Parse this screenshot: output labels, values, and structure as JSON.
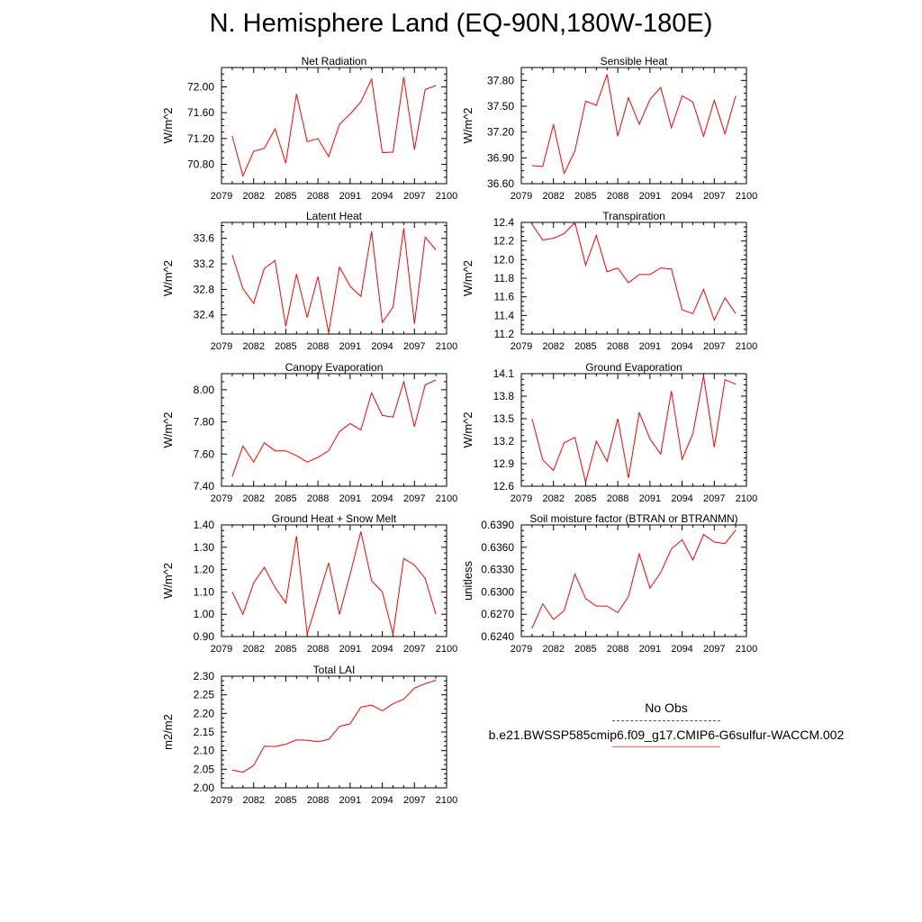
{
  "page_title": "N. Hemisphere Land (EQ-90N,180W-180E)",
  "legend": {
    "obs_label": "No Obs",
    "run_label": "b.e21.BWSSP585cmip6.f09_g17.CMIP6-G6sulfur-WACCM.002"
  },
  "colors": {
    "series": "#ff0000",
    "axis": "#000000"
  },
  "chart_data": [
    {
      "type": "line",
      "title": "Net Radiation",
      "ylabel": "W/m^2",
      "xlabel": "",
      "xlim": [
        2079,
        2100
      ],
      "ylim": [
        70.5,
        72.3
      ],
      "yticks": [
        "70.80",
        "71.20",
        "71.60",
        "72.00"
      ],
      "xticks": [
        "2079",
        "2082",
        "2085",
        "2088",
        "2091",
        "2094",
        "2097",
        "2100"
      ],
      "x": [
        2080,
        2081,
        2082,
        2083,
        2084,
        2085,
        2086,
        2087,
        2088,
        2089,
        2090,
        2091,
        2092,
        2093,
        2094,
        2095,
        2096,
        2097,
        2098,
        2099
      ],
      "series": [
        {
          "values": [
            71.24,
            70.62,
            71.0,
            71.05,
            71.35,
            70.82,
            71.89,
            71.15,
            71.2,
            70.92,
            71.42,
            71.58,
            71.77,
            72.12,
            70.98,
            70.99,
            72.15,
            71.03,
            71.96,
            72.02
          ]
        }
      ]
    },
    {
      "type": "line",
      "title": "Sensible Heat",
      "ylabel": "W/m^2",
      "xlabel": "",
      "xlim": [
        2079,
        2100
      ],
      "ylim": [
        36.6,
        37.95
      ],
      "yticks": [
        "36.60",
        "36.90",
        "37.20",
        "37.50",
        "37.80"
      ],
      "xticks": [
        "2079",
        "2082",
        "2085",
        "2088",
        "2091",
        "2094",
        "2097",
        "2100"
      ],
      "x": [
        2080,
        2081,
        2082,
        2083,
        2084,
        2085,
        2086,
        2087,
        2088,
        2089,
        2090,
        2091,
        2092,
        2093,
        2094,
        2095,
        2096,
        2097,
        2098,
        2099
      ],
      "series": [
        {
          "values": [
            36.81,
            36.8,
            37.29,
            36.72,
            36.98,
            37.56,
            37.51,
            37.87,
            37.15,
            37.6,
            37.29,
            37.58,
            37.72,
            37.25,
            37.62,
            37.55,
            37.15,
            37.57,
            37.18,
            37.62
          ]
        }
      ]
    },
    {
      "type": "line",
      "title": "Latent Heat",
      "ylabel": "W/m^2",
      "xlabel": "",
      "xlim": [
        2079,
        2100
      ],
      "ylim": [
        32.1,
        33.85
      ],
      "yticks": [
        "32.4",
        "32.8",
        "33.2",
        "33.6"
      ],
      "xticks": [
        "2079",
        "2082",
        "2085",
        "2088",
        "2091",
        "2094",
        "2097",
        "2100"
      ],
      "x": [
        2080,
        2081,
        2082,
        2083,
        2084,
        2085,
        2086,
        2087,
        2088,
        2089,
        2090,
        2091,
        2092,
        2093,
        2094,
        2095,
        2096,
        2097,
        2098,
        2099
      ],
      "series": [
        {
          "values": [
            33.34,
            32.81,
            32.58,
            33.13,
            33.25,
            32.22,
            33.04,
            32.36,
            33.0,
            32.12,
            33.15,
            32.85,
            32.69,
            33.71,
            32.28,
            32.52,
            33.76,
            32.26,
            33.62,
            33.42
          ]
        }
      ]
    },
    {
      "type": "line",
      "title": "Transpiration",
      "ylabel": "W/m^2",
      "xlabel": "",
      "xlim": [
        2079,
        2100
      ],
      "ylim": [
        11.2,
        12.4
      ],
      "yticks": [
        "11.2",
        "11.4",
        "11.6",
        "11.8",
        "12.0",
        "12.2",
        "12.4"
      ],
      "xticks": [
        "2079",
        "2082",
        "2085",
        "2088",
        "2091",
        "2094",
        "2097",
        "2100"
      ],
      "x": [
        2080,
        2081,
        2082,
        2083,
        2084,
        2085,
        2086,
        2087,
        2088,
        2089,
        2090,
        2091,
        2092,
        2093,
        2094,
        2095,
        2096,
        2097,
        2098,
        2099
      ],
      "series": [
        {
          "values": [
            12.38,
            12.21,
            12.23,
            12.28,
            12.4,
            11.94,
            12.26,
            11.87,
            11.91,
            11.75,
            11.84,
            11.84,
            11.91,
            11.9,
            11.46,
            11.42,
            11.68,
            11.35,
            11.59,
            11.42
          ]
        }
      ]
    },
    {
      "type": "line",
      "title": "Canopy Evaporation",
      "ylabel": "W/m^2",
      "xlabel": "",
      "xlim": [
        2079,
        2100
      ],
      "ylim": [
        7.4,
        8.1
      ],
      "yticks": [
        "7.40",
        "7.60",
        "7.80",
        "8.00"
      ],
      "xticks": [
        "2079",
        "2082",
        "2085",
        "2088",
        "2091",
        "2094",
        "2097",
        "2100"
      ],
      "x": [
        2080,
        2081,
        2082,
        2083,
        2084,
        2085,
        2086,
        2087,
        2088,
        2089,
        2090,
        2091,
        2092,
        2093,
        2094,
        2095,
        2096,
        2097,
        2098,
        2099
      ],
      "series": [
        {
          "values": [
            7.46,
            7.65,
            7.55,
            7.67,
            7.62,
            7.62,
            7.59,
            7.55,
            7.58,
            7.62,
            7.74,
            7.79,
            7.75,
            7.98,
            7.84,
            7.83,
            8.05,
            7.77,
            8.03,
            8.06
          ]
        }
      ]
    },
    {
      "type": "line",
      "title": "Ground Evaporation",
      "ylabel": "W/m^2",
      "xlabel": "",
      "xlim": [
        2079,
        2100
      ],
      "ylim": [
        12.6,
        14.1
      ],
      "yticks": [
        "12.6",
        "12.9",
        "13.2",
        "13.5",
        "13.8",
        "14.1"
      ],
      "xticks": [
        "2079",
        "2082",
        "2085",
        "2088",
        "2091",
        "2094",
        "2097",
        "2100"
      ],
      "x": [
        2080,
        2081,
        2082,
        2083,
        2084,
        2085,
        2086,
        2087,
        2088,
        2089,
        2090,
        2091,
        2092,
        2093,
        2094,
        2095,
        2096,
        2097,
        2098,
        2099
      ],
      "series": [
        {
          "values": [
            13.5,
            12.95,
            12.81,
            13.18,
            13.25,
            12.65,
            13.2,
            12.93,
            13.5,
            12.71,
            13.58,
            13.23,
            13.03,
            13.87,
            12.96,
            13.3,
            14.07,
            13.12,
            14.02,
            13.96
          ]
        }
      ]
    },
    {
      "type": "line",
      "title": "Ground Heat + Snow Melt",
      "ylabel": "W/m^2",
      "xlabel": "",
      "xlim": [
        2079,
        2100
      ],
      "ylim": [
        0.9,
        1.4
      ],
      "yticks": [
        "0.90",
        "1.00",
        "1.10",
        "1.20",
        "1.30",
        "1.40"
      ],
      "xticks": [
        "2079",
        "2082",
        "2085",
        "2088",
        "2091",
        "2094",
        "2097",
        "2100"
      ],
      "x": [
        2080,
        2081,
        2082,
        2083,
        2084,
        2085,
        2086,
        2087,
        2088,
        2089,
        2090,
        2091,
        2092,
        2093,
        2094,
        2095,
        2096,
        2097,
        2098,
        2099
      ],
      "series": [
        {
          "values": [
            1.1,
            1.0,
            1.14,
            1.21,
            1.12,
            1.05,
            1.35,
            0.91,
            1.07,
            1.23,
            1.0,
            1.18,
            1.37,
            1.15,
            1.1,
            0.91,
            1.25,
            1.22,
            1.16,
            1.0
          ]
        }
      ]
    },
    {
      "type": "line",
      "title": "Soil moisture factor (BTRAN or BTRANMN)",
      "ylabel": "unitless",
      "xlabel": "",
      "xlim": [
        2079,
        2100
      ],
      "ylim": [
        0.624,
        0.639
      ],
      "yticks": [
        "0.6240",
        "0.6270",
        "0.6300",
        "0.6330",
        "0.6360",
        "0.6390"
      ],
      "xticks": [
        "2079",
        "2082",
        "2085",
        "2088",
        "2091",
        "2094",
        "2097",
        "2100"
      ],
      "x": [
        2080,
        2081,
        2082,
        2083,
        2084,
        2085,
        2086,
        2087,
        2088,
        2089,
        2090,
        2091,
        2092,
        2093,
        2094,
        2095,
        2096,
        2097,
        2098,
        2099
      ],
      "series": [
        {
          "values": [
            0.6251,
            0.6284,
            0.6263,
            0.6275,
            0.6324,
            0.6291,
            0.6281,
            0.6281,
            0.6272,
            0.6294,
            0.6351,
            0.6305,
            0.6326,
            0.6358,
            0.637,
            0.6343,
            0.6377,
            0.6367,
            0.6365,
            0.6383
          ]
        }
      ]
    },
    {
      "type": "line",
      "title": "Total LAI",
      "ylabel": "m2/m2",
      "xlabel": "",
      "xlim": [
        2079,
        2100
      ],
      "ylim": [
        2.0,
        2.3
      ],
      "yticks": [
        "2.00",
        "2.05",
        "2.10",
        "2.15",
        "2.20",
        "2.25",
        "2.30"
      ],
      "xticks": [
        "2079",
        "2082",
        "2085",
        "2088",
        "2091",
        "2094",
        "2097",
        "2100"
      ],
      "x": [
        2080,
        2081,
        2082,
        2083,
        2084,
        2085,
        2086,
        2087,
        2088,
        2089,
        2090,
        2091,
        2092,
        2093,
        2094,
        2095,
        2096,
        2097,
        2098,
        2099
      ],
      "series": [
        {
          "values": [
            2.048,
            2.042,
            2.06,
            2.112,
            2.111,
            2.117,
            2.129,
            2.128,
            2.124,
            2.13,
            2.165,
            2.172,
            2.217,
            2.222,
            2.207,
            2.226,
            2.238,
            2.268,
            2.28,
            2.289
          ]
        }
      ]
    }
  ]
}
